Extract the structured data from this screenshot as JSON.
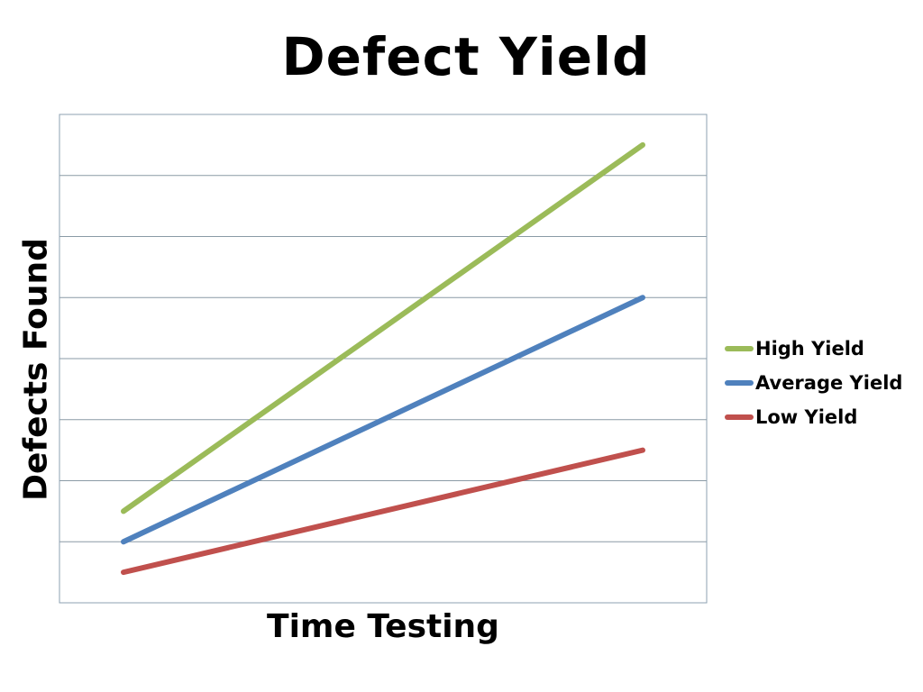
{
  "chart_data": {
    "type": "line",
    "title": "Defect Yield",
    "xlabel": "Time Testing",
    "ylabel": "Defects Found",
    "x": [
      0,
      1
    ],
    "xlim": [
      0,
      1
    ],
    "ylim": [
      0,
      8
    ],
    "grid": true,
    "legend_position": "right",
    "series": [
      {
        "name": "High Yield",
        "color": "#9bbb59",
        "values": [
          1.5,
          7.5
        ]
      },
      {
        "name": "Average Yield",
        "color": "#4f81bd",
        "values": [
          1.0,
          5.0
        ]
      },
      {
        "name": "Low Yield",
        "color": "#c0504d",
        "values": [
          0.5,
          2.5
        ]
      }
    ]
  }
}
